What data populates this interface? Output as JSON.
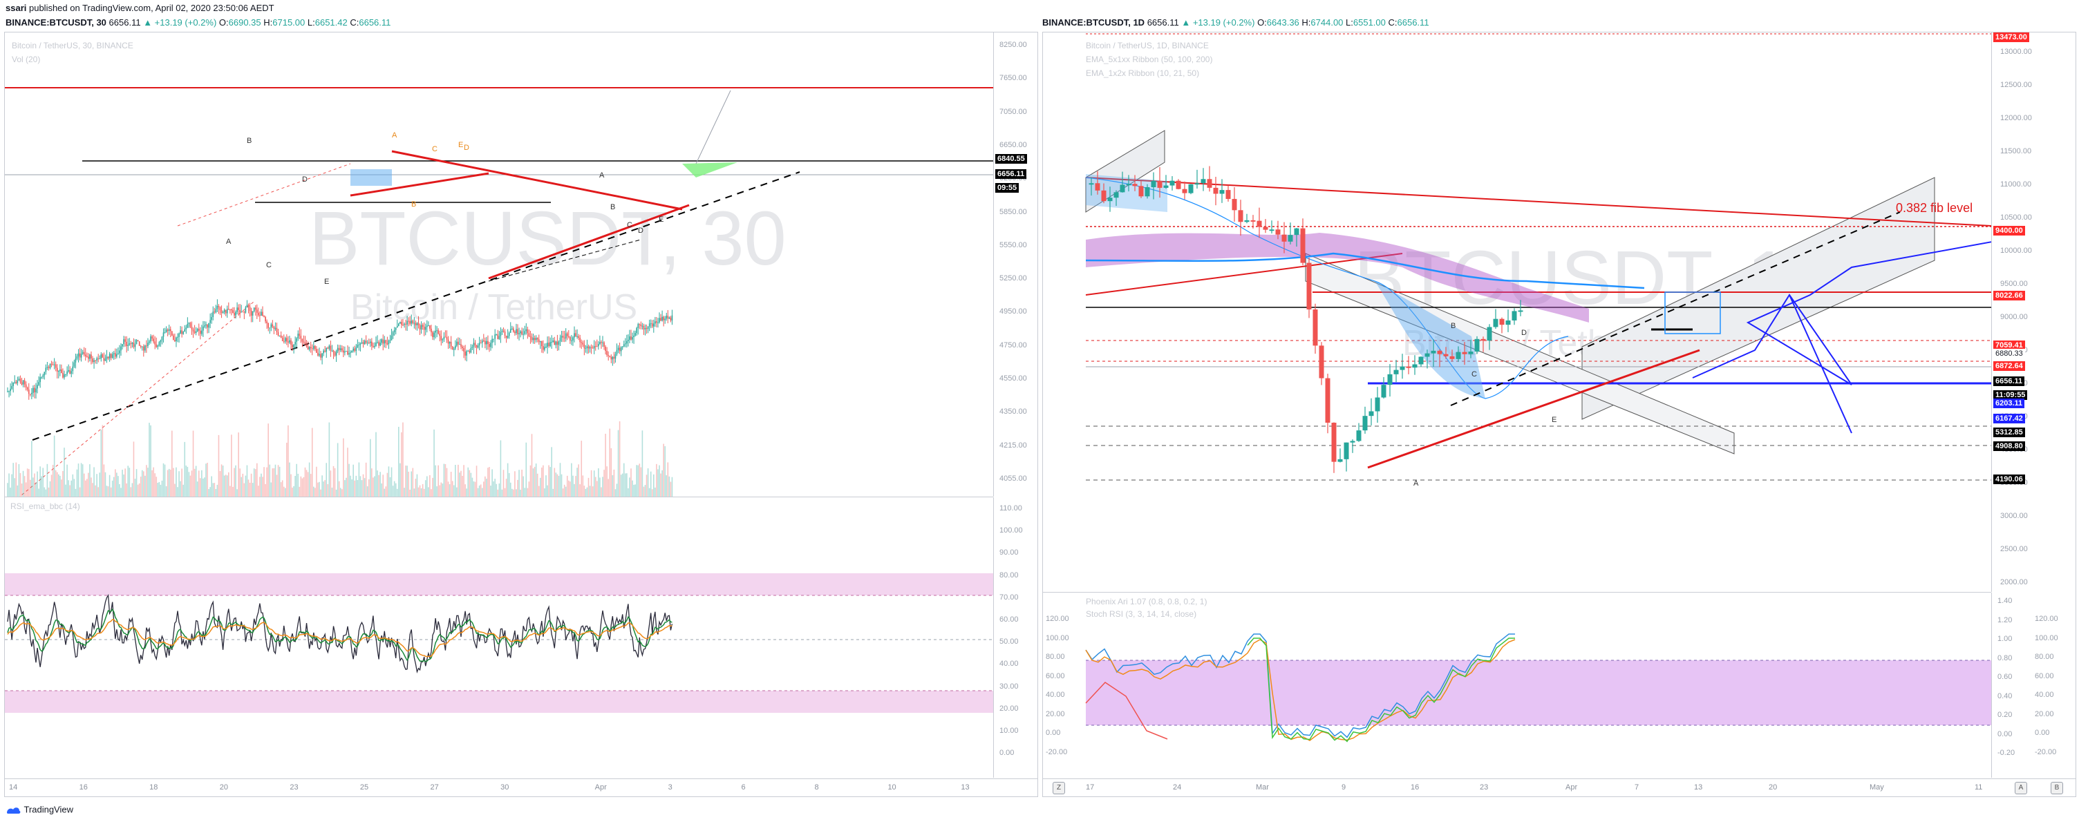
{
  "publish_line": {
    "author": "ssari",
    "text": " published on TradingView.com, April 02, 2020 23:50:06 AEDT"
  },
  "left": {
    "symbol_line": {
      "symbol": "BINANCE:BTCUSDT, 30",
      "price": "6656.11",
      "change": "▲ +13.19 (+0.2%)",
      "o": "6690.35",
      "h": "6715.00",
      "l": "6651.42",
      "c": "6656.11"
    },
    "legend": [
      "Bitcoin / TetherUS, 30, BINANCE",
      "Vol (20)"
    ],
    "watermark": {
      "ticker": "BTCUSDT, 30",
      "name": "Bitcoin / TetherUS"
    },
    "price_ticks": [
      "8250.00",
      "7650.00",
      "7050.00",
      "6650.00",
      "6250.00",
      "5850.00",
      "5550.00",
      "5250.00",
      "4950.00",
      "4750.00",
      "4550.00",
      "4350.00",
      "4215.00",
      "4055.00"
    ],
    "price_labels": [
      {
        "text": "6840.55",
        "color": "#000000"
      },
      {
        "text": "6656.11",
        "color": "#000000"
      },
      {
        "text": "09:55",
        "color": "#000000"
      }
    ],
    "rsi_legend": "RSI_ema_bbc (14)",
    "rsi_ticks": [
      "110.00",
      "100.00",
      "90.00",
      "80.00",
      "70.00",
      "60.00",
      "50.00",
      "40.00",
      "30.00",
      "20.00",
      "10.00",
      "0.00"
    ],
    "x_ticks": [
      "14",
      "16",
      "18",
      "20",
      "23",
      "25",
      "27",
      "30",
      "Apr",
      "3",
      "6",
      "8",
      "10",
      "13"
    ],
    "wave_labels": [
      "B",
      "A",
      "C",
      "D",
      "E",
      "A",
      "B",
      "C",
      "D",
      "E",
      "A",
      "B",
      "C",
      "D",
      "E"
    ]
  },
  "right": {
    "symbol_line": {
      "symbol": "BINANCE:BTCUSDT, 1D",
      "price": "6656.11",
      "change": "▲ +13.19 (+0.2%)",
      "o": "6643.36",
      "h": "6744.00",
      "l": "6551.00",
      "c": "6656.11"
    },
    "legend": [
      "Bitcoin / TetherUS, 1D, BINANCE",
      "EMA_5x1xx Ribbon (50, 100, 200)",
      "EMA_1x2x Ribbon (10, 21, 50)"
    ],
    "watermark": {
      "ticker": "BTCUSDT, 1D",
      "name": "Bitcoin / TetherUS"
    },
    "annotation": "0.382 fib level",
    "price_ticks": [
      "13000.00",
      "12500.00",
      "12000.00",
      "11500.00",
      "11000.00",
      "10500.00",
      "10000.00",
      "9500.00",
      "9000.00",
      "8500.00",
      "7500.00",
      "6500.00",
      "4500.00",
      "3500.00",
      "3000.00",
      "2500.00",
      "2000.00"
    ],
    "price_labels": [
      {
        "text": "13473.00",
        "color": "#ff2b2b"
      },
      {
        "text": "9400.00",
        "color": "#ff2b2b"
      },
      {
        "text": "8022.66",
        "color": "#ff2b2b"
      },
      {
        "text": "7059.41",
        "color": "#ff2b2b"
      },
      {
        "text": "6880.33",
        "color": "#ffffff"
      },
      {
        "text": "6872.64",
        "color": "#ff2b2b"
      },
      {
        "text": "6656.11",
        "color": "#000000"
      },
      {
        "text": "11:09:55",
        "color": "#000000"
      },
      {
        "text": "6203.11",
        "color": "#1e22ff"
      },
      {
        "text": "6167.42",
        "color": "#1e22ff"
      },
      {
        "text": "5312.85",
        "color": "#000000"
      },
      {
        "text": "4908.80",
        "color": "#000000"
      },
      {
        "text": "4190.06",
        "color": "#000000"
      }
    ],
    "osc_legend": [
      "Phoenix Ari 1.07 (0.8, 0.8, 0.2, 1)",
      "Stoch RSI (3, 3, 14, 14, close)"
    ],
    "osc_left_ticks": [
      "120.00",
      "100.00",
      "80.00",
      "60.00",
      "40.00",
      "20.00",
      "0.00",
      "-20.00"
    ],
    "osc_right_ticks": [
      "1.40",
      "1.20",
      "1.00",
      "0.80",
      "0.60",
      "0.40",
      "0.20",
      "0.00",
      "-0.20"
    ],
    "osc_right_ticks2": [
      "120.00",
      "100.00",
      "80.00",
      "60.00",
      "40.00",
      "20.00",
      "0.00",
      "-20.00"
    ],
    "x_ticks": [
      "17",
      "24",
      "Mar",
      "9",
      "16",
      "23",
      "Apr",
      "7",
      "13",
      "20",
      "May",
      "11"
    ],
    "wave_labels": [
      "B",
      "D",
      "A",
      "C",
      "E"
    ]
  },
  "footer": {
    "brand": "TradingView",
    "left_button": "Z",
    "right_button_a": "A",
    "right_button_b": "B"
  },
  "colors": {
    "bull": "#26a69a",
    "bear": "#ef5350",
    "red_line": "#e0191b",
    "blue": "#1e22ff",
    "rsi_band": "#f3d5ef",
    "osc_band": "#e7c4f5"
  }
}
